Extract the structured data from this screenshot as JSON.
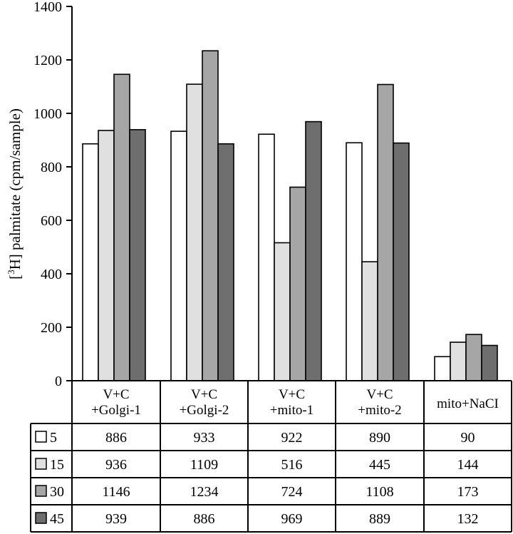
{
  "chart_data": {
    "type": "bar",
    "ylabel_prefix": "[",
    "ylabel_sup": "3",
    "ylabel_rest": "H] palmitate (cpm/sample)",
    "ylim": [
      0,
      1400
    ],
    "yticks": [
      0,
      200,
      400,
      600,
      800,
      1000,
      1200,
      1400
    ],
    "categories": [
      [
        "V+C",
        "+Golgi-1"
      ],
      [
        "V+C",
        "+Golgi-2"
      ],
      [
        "V+C",
        "+mito-1"
      ],
      [
        "V+C",
        "+mito-2"
      ],
      [
        "mito+NaCI"
      ]
    ],
    "series": [
      {
        "name": "5",
        "color": "#ffffff",
        "values": [
          886,
          933,
          922,
          890,
          90
        ]
      },
      {
        "name": "15",
        "color": "#e0e0e0",
        "values": [
          936,
          1109,
          516,
          445,
          144
        ]
      },
      {
        "name": "30",
        "color": "#a6a6a6",
        "values": [
          1146,
          1234,
          724,
          1108,
          173
        ]
      },
      {
        "name": "45",
        "color": "#6e6e6e",
        "values": [
          939,
          886,
          969,
          889,
          132
        ]
      }
    ],
    "legend": "table-rows-left",
    "grid": false
  }
}
